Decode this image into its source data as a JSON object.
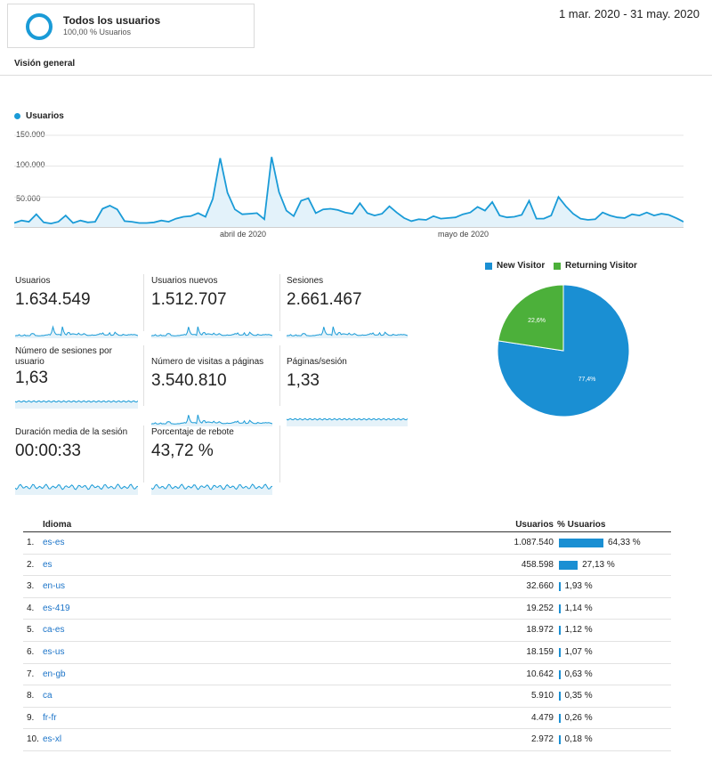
{
  "segment": {
    "title": "Todos los usuarios",
    "subtitle": "100,00 % Usuarios"
  },
  "date_range": "1 mar. 2020 - 31 may. 2020",
  "tab": "Visión general",
  "main_chart": {
    "legend": "Usuarios",
    "color": "#1a9bd7",
    "y_ticks": [
      "150.000",
      "100.000",
      "50.000"
    ],
    "x_ticks": [
      "abril de 2020",
      "mayo de 2020"
    ]
  },
  "metrics": [
    {
      "label": "Usuarios",
      "value": "1.634.549"
    },
    {
      "label": "Usuarios nuevos",
      "value": "1.512.707"
    },
    {
      "label": "Sesiones",
      "value": "2.661.467"
    },
    {
      "label": "Número de sesiones por usuario",
      "value": "1,63"
    },
    {
      "label": "Número de visitas a páginas",
      "value": "3.540.810"
    },
    {
      "label": "Páginas/sesión",
      "value": "1,33"
    },
    {
      "label": "Duración media de la sesión",
      "value": "00:00:33"
    },
    {
      "label": "Porcentaje de rebote",
      "value": "43,72 %"
    }
  ],
  "pie": {
    "legend": [
      {
        "name": "New Visitor",
        "color": "#1a8fd3"
      },
      {
        "name": "Returning Visitor",
        "color": "#4cb03a"
      }
    ],
    "slices": [
      {
        "name": "New Visitor",
        "value": 77.4,
        "label": "77,4%"
      },
      {
        "name": "Returning Visitor",
        "value": 22.6,
        "label": "22,6%"
      }
    ]
  },
  "table": {
    "headers": {
      "language": "Idioma",
      "users": "Usuarios",
      "pct": "% Usuarios"
    },
    "rows": [
      {
        "idx": "1.",
        "lang": "es-es",
        "users": "1.087.540",
        "pct": "64,33 %",
        "frac": 0.6433
      },
      {
        "idx": "2.",
        "lang": "es",
        "users": "458.598",
        "pct": "27,13 %",
        "frac": 0.2713
      },
      {
        "idx": "3.",
        "lang": "en-us",
        "users": "32.660",
        "pct": "1,93 %",
        "frac": 0.0193
      },
      {
        "idx": "4.",
        "lang": "es-419",
        "users": "19.252",
        "pct": "1,14 %",
        "frac": 0.0114
      },
      {
        "idx": "5.",
        "lang": "ca-es",
        "users": "18.972",
        "pct": "1,12 %",
        "frac": 0.0112
      },
      {
        "idx": "6.",
        "lang": "es-us",
        "users": "18.159",
        "pct": "1,07 %",
        "frac": 0.0107
      },
      {
        "idx": "7.",
        "lang": "en-gb",
        "users": "10.642",
        "pct": "0,63 %",
        "frac": 0.0063
      },
      {
        "idx": "8.",
        "lang": "ca",
        "users": "5.910",
        "pct": "0,35 %",
        "frac": 0.0035
      },
      {
        "idx": "9.",
        "lang": "fr-fr",
        "users": "4.479",
        "pct": "0,26 %",
        "frac": 0.0026
      },
      {
        "idx": "10.",
        "lang": "es-xl",
        "users": "2.972",
        "pct": "0,18 %",
        "frac": 0.0018
      }
    ]
  },
  "chart_data": [
    {
      "type": "area",
      "series": [
        {
          "name": "Usuarios",
          "values": [
            8000,
            12000,
            10000,
            22000,
            9000,
            7000,
            10000,
            20000,
            8000,
            12000,
            9000,
            10000,
            31000,
            36000,
            30000,
            11000,
            10000,
            8000,
            8000,
            9000,
            12000,
            10000,
            15000,
            18000,
            19000,
            24000,
            18000,
            47000,
            113000,
            57000,
            30000,
            22000,
            23000,
            24000,
            14000,
            115000,
            58000,
            28000,
            19000,
            44000,
            48000,
            24000,
            30000,
            31000,
            29000,
            25000,
            23000,
            40000,
            24000,
            20000,
            23000,
            35000,
            25000,
            16000,
            11000,
            14000,
            13000,
            19000,
            15000,
            16000,
            17000,
            22000,
            25000,
            34000,
            28000,
            42000,
            20000,
            17000,
            18000,
            21000,
            44000,
            15000,
            15000,
            20000,
            50000,
            35000,
            23000,
            15000,
            13000,
            14000,
            25000,
            20000,
            17000,
            16000,
            22000,
            20000,
            25000,
            20000,
            23000,
            21000,
            16000,
            10000
          ]
        }
      ],
      "ylim": [
        0,
        150000
      ]
    },
    {
      "type": "pie",
      "categories": [
        "New Visitor",
        "Returning Visitor"
      ],
      "values": [
        77.4,
        22.6
      ]
    }
  ]
}
